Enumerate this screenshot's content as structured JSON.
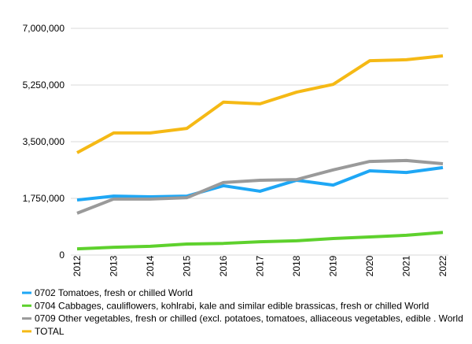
{
  "chart_data": {
    "type": "line",
    "categories": [
      "2012",
      "2013",
      "2014",
      "2015",
      "2016",
      "2017",
      "2018",
      "2019",
      "2020",
      "2021",
      "2022"
    ],
    "series": [
      {
        "name": "0702 Tomatoes, fresh or chilled World",
        "color": "#1ea7f5",
        "values": [
          1700000,
          1820000,
          1800000,
          1820000,
          2140000,
          1970000,
          2310000,
          2160000,
          2600000,
          2550000,
          2700000
        ]
      },
      {
        "name": " 0704 Cabbages, cauliflowers, kohlrabi, kale and similar edible brassicas, fresh or chilled World",
        "color": "#5ed12d",
        "values": [
          190000,
          240000,
          270000,
          340000,
          360000,
          410000,
          440000,
          510000,
          560000,
          610000,
          700000
        ]
      },
      {
        "name": "0709 Other vegetables, fresh or chilled (excl. potatoes, tomatoes, alliaceous vegetables, edible . World",
        "color": "#9a9a9a",
        "values": [
          1290000,
          1730000,
          1730000,
          1770000,
          2240000,
          2310000,
          2330000,
          2630000,
          2890000,
          2920000,
          2820000
        ]
      },
      {
        "name": "TOTAL",
        "color": "#f5b915",
        "values": [
          3160000,
          3770000,
          3770000,
          3910000,
          4720000,
          4670000,
          5030000,
          5270000,
          6000000,
          6030000,
          6150000
        ]
      }
    ],
    "ylim": [
      0,
      7000000
    ],
    "yticks": [
      0,
      {
        "value": 1750000,
        "label": "1,750,000"
      },
      {
        "value": 3500000,
        "label": "3,500,000"
      },
      {
        "value": 5250000,
        "label": "5,250,000"
      },
      {
        "value": 7000000,
        "label": "7,000,000"
      }
    ],
    "grid": true
  }
}
